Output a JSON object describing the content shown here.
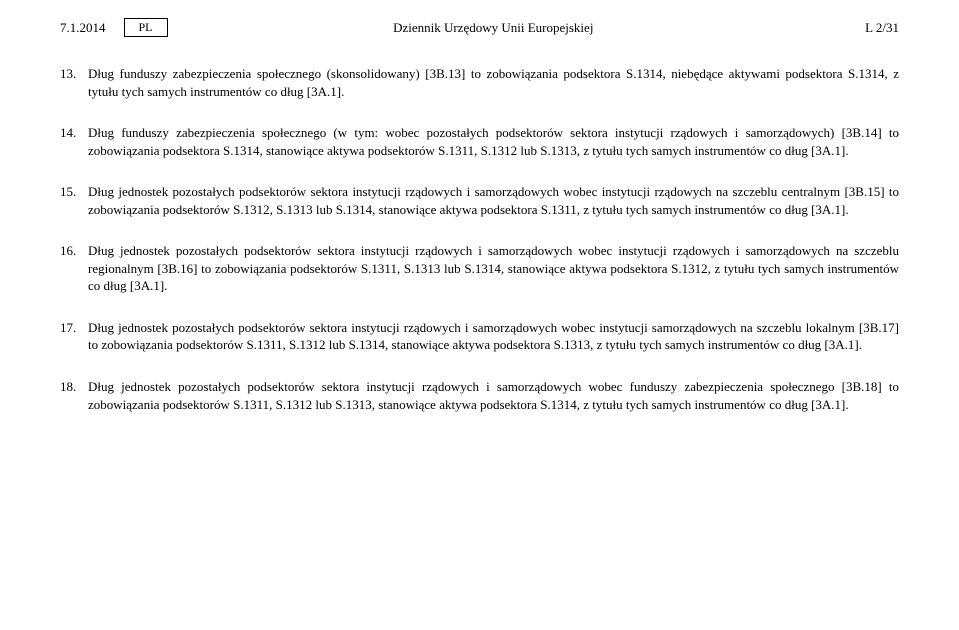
{
  "header": {
    "date": "7.1.2014",
    "lang": "PL",
    "title": "Dziennik Urzędowy Unii Europejskiej",
    "pageRef": "L 2/31"
  },
  "paragraphs": [
    {
      "num": "13.",
      "text": "Dług funduszy zabezpieczenia społecznego (skonsolidowany) [3B.13] to zobowiązania podsektora S.1314, niebędące aktywami podsektora S.1314, z tytułu tych samych instrumentów co dług [3A.1]."
    },
    {
      "num": "14.",
      "text": "Dług funduszy zabezpieczenia społecznego (w tym: wobec pozostałych podsektorów sektora instytucji rządowych i samorządowych) [3B.14] to zobowiązania podsektora S.1314, stanowiące aktywa podsektorów S.1311, S.1312 lub S.1313, z tytułu tych samych instrumentów co dług [3A.1]."
    },
    {
      "num": "15.",
      "text": "Dług jednostek pozostałych podsektorów sektora instytucji rządowych i samorządowych wobec instytucji rządowych na szczeblu centralnym [3B.15] to zobowiązania podsektorów S.1312, S.1313 lub S.1314, stanowiące aktywa podsektora S.1311, z tytułu tych samych instrumentów co dług [3A.1]."
    },
    {
      "num": "16.",
      "text": "Dług jednostek pozostałych podsektorów sektora instytucji rządowych i samorządowych wobec instytucji rządowych i samorządowych na szczeblu regionalnym [3B.16] to zobowiązania podsektorów S.1311, S.1313 lub S.1314, stanowiące aktywa podsektora S.1312, z tytułu tych samych instrumentów co dług [3A.1]."
    },
    {
      "num": "17.",
      "text": "Dług jednostek pozostałych podsektorów sektora instytucji rządowych i samorządowych wobec instytucji samorządowych na szczeblu lokalnym [3B.17] to zobowiązania podsektorów S.1311, S.1312 lub S.1314, stanowiące aktywa podsektora S.1313, z tytułu tych samych instrumentów co dług [3A.1]."
    },
    {
      "num": "18.",
      "text": "Dług jednostek pozostałych podsektorów sektora instytucji rządowych i samorządowych wobec funduszy zabezpieczenia społecznego [3B.18] to zobowiązania podsektorów S.1311, S.1312 lub S.1313, stanowiące aktywa podsektora S.1314, z tytułu tych samych instrumentów co dług [3A.1]."
    }
  ]
}
